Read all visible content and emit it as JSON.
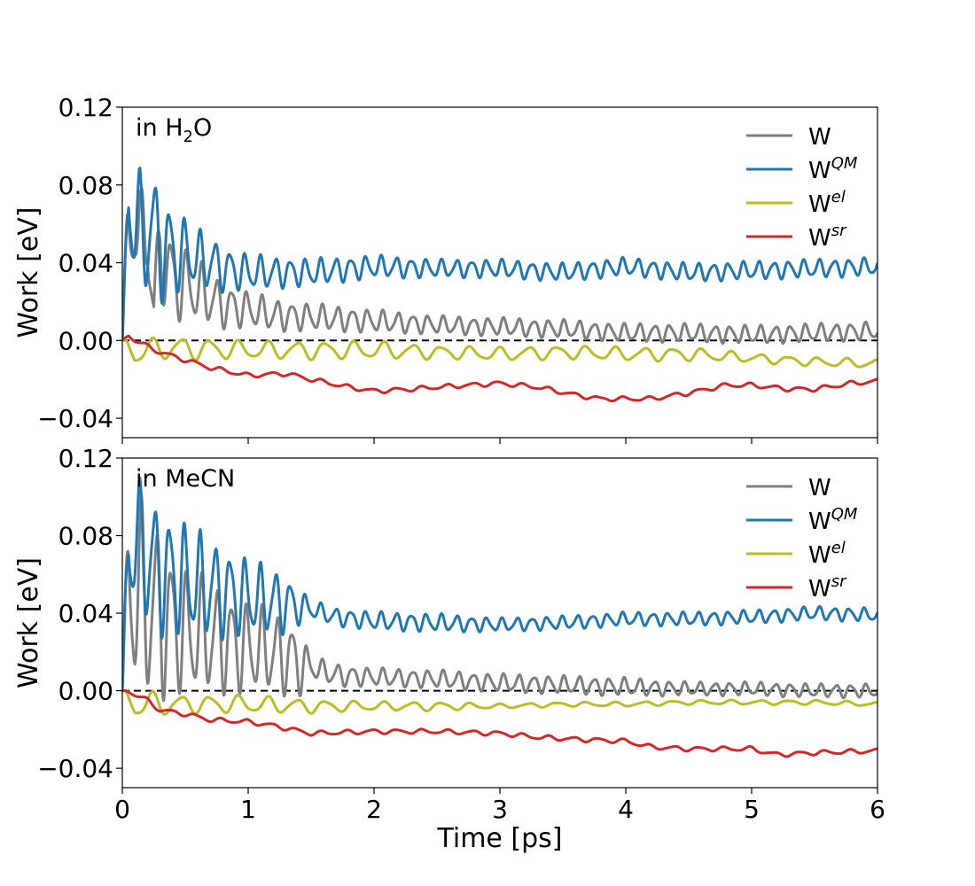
{
  "chart_data": [
    {
      "type": "line",
      "panel_label": {
        "prefix": "in H",
        "subscript": "2",
        "suffix": "O"
      },
      "xlabel": "",
      "ylabel": "Work [eV]",
      "xlim": [
        0,
        6
      ],
      "ylim": [
        -0.05,
        0.12
      ],
      "y_ticks": [
        -0.04,
        0.0,
        0.04,
        0.08,
        0.12
      ],
      "y_tick_labels": [
        "−0.04",
        "0.00",
        "0.04",
        "0.08",
        "0.12"
      ],
      "x_ticks": [
        0,
        1,
        2,
        3,
        4,
        5,
        6
      ],
      "show_x_tick_labels": false,
      "reference_line": {
        "y": 0.0,
        "style": "dashed",
        "color": "#000000"
      },
      "legend": {
        "placement": "top-right"
      },
      "series": [
        {
          "name": "W",
          "sup": "",
          "color": "#7f7f7f",
          "x": [
            0,
            0.05,
            0.1,
            0.15,
            0.2,
            0.25,
            0.3,
            0.4,
            0.5,
            0.6,
            0.7,
            0.8,
            1.0,
            1.2,
            1.5,
            2.0,
            2.5,
            3.0,
            3.5,
            4.0,
            4.5,
            5.0,
            5.5,
            6.0
          ],
          "y": [
            0,
            0.055,
            0.07,
            0.04,
            0.065,
            0.01,
            0.048,
            0.03,
            0.03,
            0.025,
            0.022,
            0.018,
            0.016,
            0.013,
            0.012,
            0.01,
            0.008,
            0.007,
            0.006,
            0.004,
            0.004,
            0.003,
            0.004,
            0.005
          ],
          "osc_amp": [
            0,
            0.035,
            0.03,
            0.03,
            0.025,
            0.025,
            0.02,
            0.02,
            0.015,
            0.014,
            0.012,
            0.01,
            0.008,
            0.007,
            0.006,
            0.005,
            0.004,
            0.004,
            0.004,
            0.004,
            0.004,
            0.004,
            0.004,
            0.004
          ],
          "osc_period": 0.12
        },
        {
          "name": "W",
          "sup": "QM",
          "color": "#1f77b4",
          "x": [
            0,
            0.05,
            0.1,
            0.15,
            0.2,
            0.3,
            0.4,
            0.5,
            0.6,
            0.7,
            0.8,
            1.0,
            1.2,
            1.5,
            2.0,
            2.5,
            3.0,
            3.5,
            4.0,
            4.5,
            5.0,
            5.5,
            6.0
          ],
          "y": [
            0,
            0.075,
            0.06,
            0.05,
            0.06,
            0.05,
            0.045,
            0.045,
            0.042,
            0.04,
            0.037,
            0.035,
            0.035,
            0.035,
            0.038,
            0.037,
            0.037,
            0.035,
            0.038,
            0.035,
            0.036,
            0.037,
            0.038
          ],
          "osc_amp": [
            0,
            0.02,
            0.03,
            0.03,
            0.028,
            0.025,
            0.02,
            0.015,
            0.013,
            0.012,
            0.01,
            0.008,
            0.007,
            0.006,
            0.005,
            0.004,
            0.004,
            0.004,
            0.004,
            0.004,
            0.004,
            0.004,
            0.004
          ],
          "osc_period": 0.12
        },
        {
          "name": "W",
          "sup": "el",
          "color": "#bcbd22",
          "x": [
            0,
            0.05,
            0.1,
            0.2,
            0.3,
            0.5,
            1.0,
            1.5,
            2.0,
            2.5,
            3.0,
            3.5,
            4.0,
            4.5,
            5.0,
            5.5,
            6.0
          ],
          "y": [
            0,
            -0.003,
            -0.006,
            -0.005,
            -0.004,
            -0.004,
            -0.005,
            -0.005,
            -0.005,
            -0.006,
            -0.007,
            -0.006,
            -0.007,
            -0.007,
            -0.009,
            -0.011,
            -0.012
          ],
          "osc_amp": [
            0,
            0.004,
            0.006,
            0.005,
            0.005,
            0.005,
            0.004,
            0.004,
            0.004,
            0.003,
            0.003,
            0.003,
            0.003,
            0.003,
            0.002,
            0.002,
            0.002
          ],
          "osc_period": 0.23
        },
        {
          "name": "W",
          "sup": "sr",
          "color": "#d62728",
          "x": [
            0,
            0.05,
            0.1,
            0.3,
            0.5,
            0.7,
            1.0,
            1.3,
            1.5,
            1.8,
            2.0,
            2.3,
            2.5,
            3.0,
            3.3,
            3.6,
            3.8,
            4.0,
            4.2,
            4.5,
            4.8,
            5.0,
            5.3,
            5.5,
            5.8,
            6.0
          ],
          "y": [
            0,
            0.003,
            0.0,
            -0.006,
            -0.01,
            -0.014,
            -0.018,
            -0.017,
            -0.02,
            -0.024,
            -0.026,
            -0.025,
            -0.024,
            -0.022,
            -0.024,
            -0.028,
            -0.03,
            -0.03,
            -0.03,
            -0.027,
            -0.023,
            -0.023,
            -0.025,
            -0.025,
            -0.022,
            -0.021
          ],
          "osc_amp": [
            0,
            0.001,
            0.001,
            0.001,
            0.001,
            0.001,
            0.001,
            0.001,
            0.001,
            0.001,
            0.001,
            0.001,
            0.001,
            0.001,
            0.001,
            0.001,
            0.001,
            0.001,
            0.001,
            0.001,
            0.001,
            0.001,
            0.001,
            0.001,
            0.001,
            0.001
          ],
          "osc_period": 0.2
        }
      ]
    },
    {
      "type": "line",
      "panel_label": {
        "prefix": "in MeCN",
        "subscript": "",
        "suffix": ""
      },
      "xlabel": "Time [ps]",
      "ylabel": "Work [eV]",
      "xlim": [
        0,
        6
      ],
      "ylim": [
        -0.05,
        0.12
      ],
      "y_ticks": [
        -0.04,
        0.0,
        0.04,
        0.08,
        0.12
      ],
      "y_tick_labels": [
        "−0.04",
        "0.00",
        "0.04",
        "0.08",
        "0.12"
      ],
      "x_ticks": [
        0,
        1,
        2,
        3,
        4,
        5,
        6
      ],
      "x_tick_labels": [
        "0",
        "1",
        "2",
        "3",
        "4",
        "5",
        "6"
      ],
      "show_x_tick_labels": true,
      "reference_line": {
        "y": 0.0,
        "style": "dashed",
        "color": "#000000"
      },
      "legend": {
        "placement": "top-right"
      },
      "series": [
        {
          "name": "W",
          "sup": "",
          "color": "#7f7f7f",
          "x": [
            0,
            0.05,
            0.1,
            0.2,
            0.3,
            0.4,
            0.5,
            0.7,
            1.0,
            1.2,
            1.4,
            1.5,
            1.7,
            2.0,
            2.5,
            3.0,
            3.5,
            4.0,
            4.5,
            5.0,
            5.5,
            6.0
          ],
          "y": [
            0,
            0.06,
            0.05,
            0.045,
            0.04,
            0.035,
            0.03,
            0.028,
            0.022,
            0.02,
            0.015,
            0.012,
            0.008,
            0.007,
            0.006,
            0.004,
            0.003,
            0.002,
            0.001,
            0.001,
            0.0,
            0.0
          ],
          "osc_amp": [
            0,
            0.04,
            0.045,
            0.042,
            0.038,
            0.03,
            0.028,
            0.025,
            0.02,
            0.018,
            0.016,
            0.005,
            0.005,
            0.004,
            0.004,
            0.004,
            0.004,
            0.004,
            0.003,
            0.003,
            0.003,
            0.003
          ],
          "osc_period": 0.12
        },
        {
          "name": "W",
          "sup": "QM",
          "color": "#1f77b4",
          "x": [
            0,
            0.05,
            0.1,
            0.2,
            0.3,
            0.5,
            0.7,
            1.0,
            1.3,
            1.5,
            1.7,
            2.0,
            2.5,
            3.0,
            3.5,
            4.0,
            4.5,
            5.0,
            5.5,
            6.0
          ],
          "y": [
            0,
            0.08,
            0.075,
            0.07,
            0.062,
            0.057,
            0.053,
            0.048,
            0.045,
            0.042,
            0.038,
            0.036,
            0.035,
            0.034,
            0.035,
            0.037,
            0.037,
            0.038,
            0.04,
            0.039
          ],
          "osc_amp": [
            0,
            0.03,
            0.03,
            0.03,
            0.028,
            0.025,
            0.022,
            0.017,
            0.013,
            0.004,
            0.004,
            0.004,
            0.004,
            0.003,
            0.003,
            0.003,
            0.003,
            0.003,
            0.003,
            0.003
          ],
          "osc_period": 0.12
        },
        {
          "name": "W",
          "sup": "el",
          "color": "#bcbd22",
          "x": [
            0,
            0.05,
            0.1,
            0.2,
            0.3,
            0.5,
            1.0,
            1.5,
            2.0,
            2.5,
            3.0,
            3.5,
            4.0,
            4.5,
            5.0,
            5.5,
            6.0
          ],
          "y": [
            0,
            -0.004,
            -0.007,
            -0.007,
            -0.007,
            -0.007,
            -0.007,
            -0.008,
            -0.008,
            -0.008,
            -0.008,
            -0.007,
            -0.007,
            -0.006,
            -0.006,
            -0.006,
            -0.007
          ],
          "osc_amp": [
            0,
            0.004,
            0.006,
            0.006,
            0.005,
            0.004,
            0.004,
            0.003,
            0.002,
            0.002,
            0.001,
            0.001,
            0.001,
            0.001,
            0.001,
            0.001,
            0.001
          ],
          "osc_period": 0.23
        },
        {
          "name": "W",
          "sup": "sr",
          "color": "#d62728",
          "x": [
            0,
            0.05,
            0.1,
            0.2,
            0.3,
            0.5,
            0.7,
            1.0,
            1.2,
            1.5,
            2.0,
            2.5,
            3.0,
            3.3,
            3.6,
            4.0,
            4.2,
            4.5,
            5.0,
            5.2,
            5.5,
            6.0
          ],
          "y": [
            0,
            0.0,
            -0.002,
            -0.005,
            -0.01,
            -0.012,
            -0.015,
            -0.016,
            -0.018,
            -0.022,
            -0.021,
            -0.021,
            -0.022,
            -0.024,
            -0.025,
            -0.026,
            -0.029,
            -0.03,
            -0.03,
            -0.033,
            -0.032,
            -0.031
          ],
          "osc_amp": [
            0,
            0.001,
            0.001,
            0.001,
            0.001,
            0.001,
            0.001,
            0.001,
            0.001,
            0.001,
            0.001,
            0.001,
            0.001,
            0.001,
            0.001,
            0.001,
            0.001,
            0.001,
            0.001,
            0.001,
            0.001,
            0.001
          ],
          "osc_period": 0.2
        }
      ]
    }
  ]
}
